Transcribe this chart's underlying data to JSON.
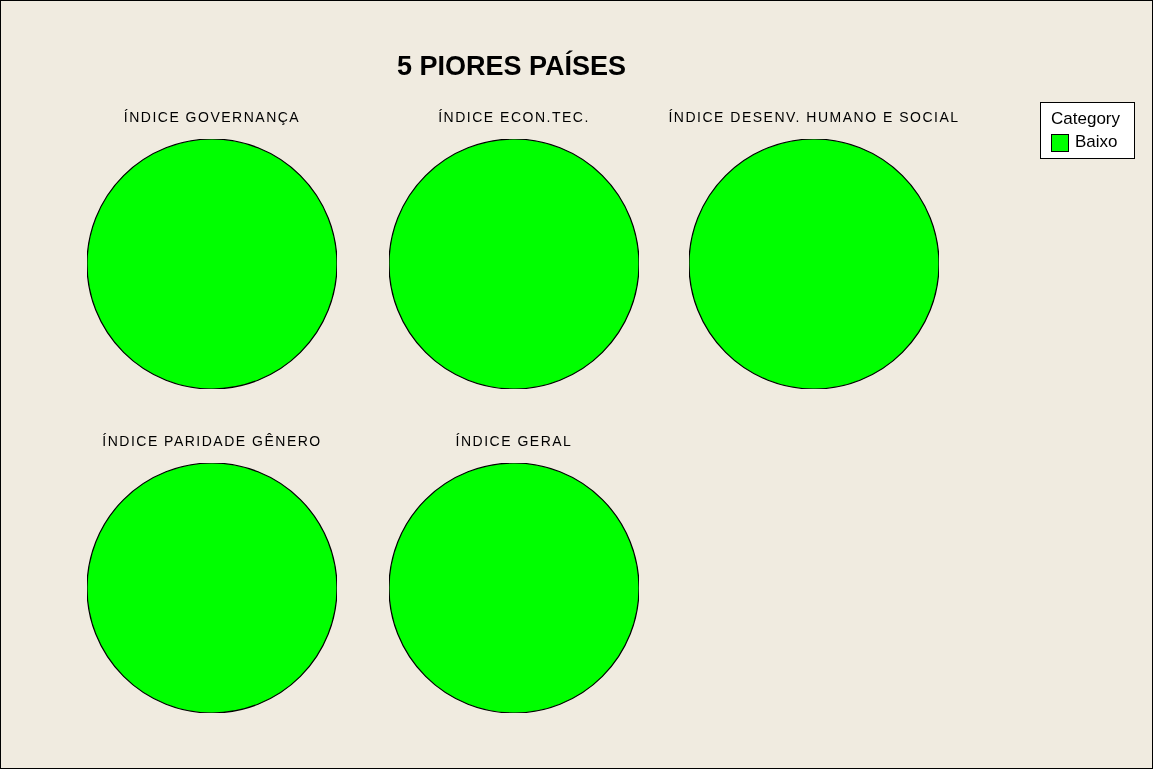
{
  "chart_data": [
    {
      "type": "pie",
      "title": "ÍNDICE GOVERNANÇA",
      "categories": [
        null
      ],
      "values": [
        100
      ],
      "colors": [
        "#00ff00"
      ],
      "annotations": [
        "5 PIORES PAÍSES"
      ]
    },
    {
      "type": "pie",
      "title": "ÍNDICE ECON.TEC.",
      "categories": [
        null
      ],
      "values": [
        100
      ],
      "colors": [
        "#00ff00"
      ]
    },
    {
      "type": "pie",
      "title": "ÍNDICE DESENV. HUMANO E SOCIAL",
      "categories": [
        "Baixo"
      ],
      "values": [
        100
      ],
      "colors": [
        "#00ff00"
      ],
      "legend": "top right",
      "legend_title": "Category"
    },
    {
      "type": "pie",
      "title": "ÍNDICE PARIDADE GÊNERO",
      "categories": [
        null
      ],
      "values": [
        100
      ],
      "colors": [
        "#00ff00"
      ]
    },
    {
      "type": "pie",
      "title": "ÍNDICE GERAL",
      "categories": [
        null
      ],
      "values": [
        100
      ],
      "colors": [
        "#00ff00"
      ]
    }
  ]
}
